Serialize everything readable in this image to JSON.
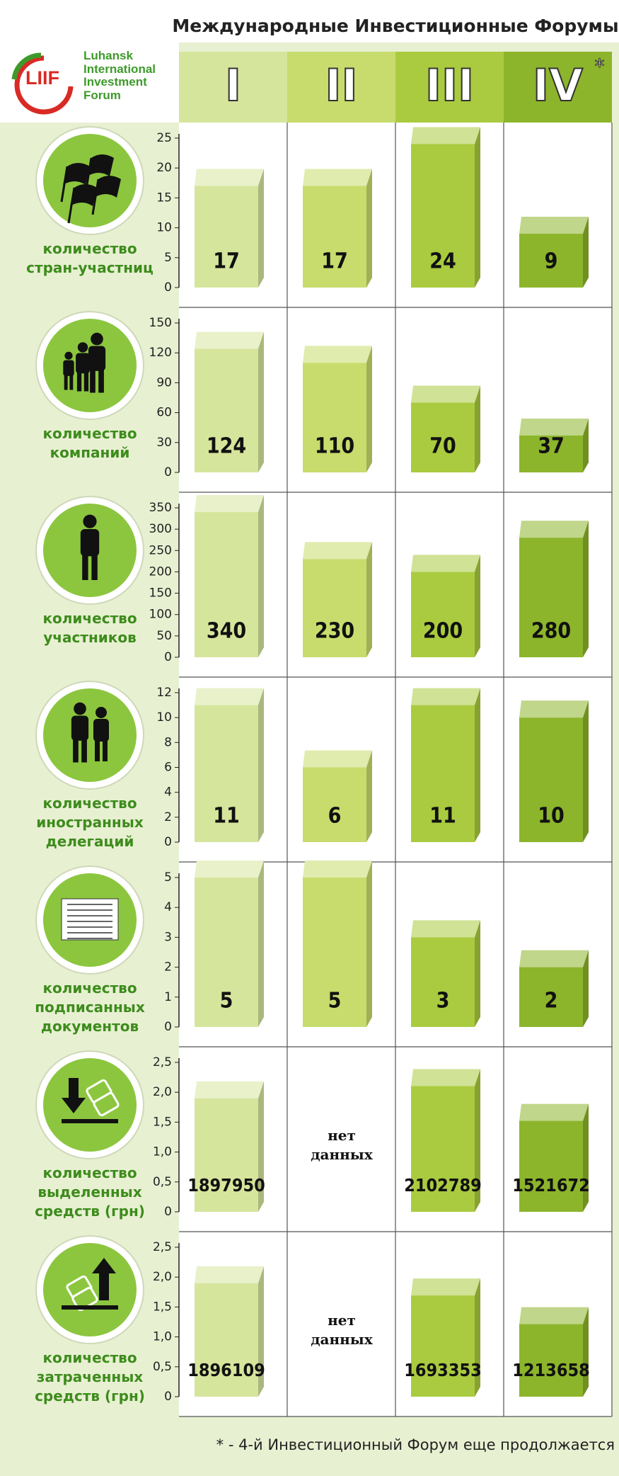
{
  "header": {
    "title": "Международные Инвестиционные Форумы",
    "forums": [
      "I",
      "II",
      "III",
      "IV"
    ],
    "asterisk": "*",
    "colors": [
      "#d6e59c",
      "#c7dc6c",
      "#aacb3f",
      "#8cb52b"
    ]
  },
  "logo": {
    "abbr": "LIIF",
    "name": "Luhansk International Investment Forum"
  },
  "footnote": "* - 4-й Инвестиционный Форум еще продолжается",
  "chart_data": [
    {
      "type": "bar",
      "title": "количество стран-участниц",
      "values": [
        17,
        17,
        24,
        9
      ],
      "ylim": [
        0,
        25
      ],
      "yticks": [
        0,
        5,
        10,
        15,
        20,
        25
      ]
    },
    {
      "type": "bar",
      "title": "количество компаний",
      "values": [
        124,
        110,
        70,
        37
      ],
      "ylim": [
        0,
        150
      ],
      "yticks": [
        0,
        30,
        60,
        90,
        120,
        150
      ]
    },
    {
      "type": "bar",
      "title": "количество участников",
      "values": [
        340,
        230,
        200,
        280
      ],
      "ylim": [
        0,
        350
      ],
      "yticks": [
        0,
        50,
        100,
        150,
        200,
        250,
        300,
        350
      ]
    },
    {
      "type": "bar",
      "title": "количество иностранных делегаций",
      "values": [
        11,
        6,
        11,
        10
      ],
      "ylim": [
        0,
        12
      ],
      "yticks": [
        0,
        2,
        4,
        6,
        8,
        10,
        12
      ]
    },
    {
      "type": "bar",
      "title": "количество подписанных документов",
      "values": [
        5,
        5,
        3,
        2
      ],
      "ylim": [
        0,
        5
      ],
      "yticks": [
        0,
        1,
        2,
        3,
        4,
        5
      ]
    },
    {
      "type": "bar",
      "title": "количество выделенных средств (грн)",
      "values": [
        1.89795,
        null,
        2.102789,
        1.521672
      ],
      "value_labels": [
        "1897950",
        null,
        "2102789",
        "1521672"
      ],
      "no_data_label": "нет данных",
      "ylim": [
        0,
        2.5
      ],
      "yticks": [
        0,
        {
          "value": 0.5,
          "label": "0,5"
        },
        {
          "value": 1,
          "label": "1,0"
        },
        {
          "value": 1.5,
          "label": "1,5"
        },
        {
          "value": 2,
          "label": "2,0"
        },
        {
          "value": 2.5,
          "label": "2,5"
        }
      ]
    },
    {
      "type": "bar",
      "title": "количество затраченных средств (грн)",
      "values": [
        1.896109,
        null,
        1.693353,
        1.213658
      ],
      "value_labels": [
        "1896109",
        null,
        "1693353",
        "1213658"
      ],
      "no_data_label": "нет данных",
      "ylim": [
        0,
        2.5
      ],
      "yticks": [
        0,
        {
          "value": 0.5,
          "label": "0,5"
        },
        {
          "value": 1,
          "label": "1,0"
        },
        {
          "value": 1.5,
          "label": "1,5"
        },
        {
          "value": 2,
          "label": "2,0"
        },
        {
          "value": 2.5,
          "label": "2,5"
        }
      ]
    }
  ]
}
